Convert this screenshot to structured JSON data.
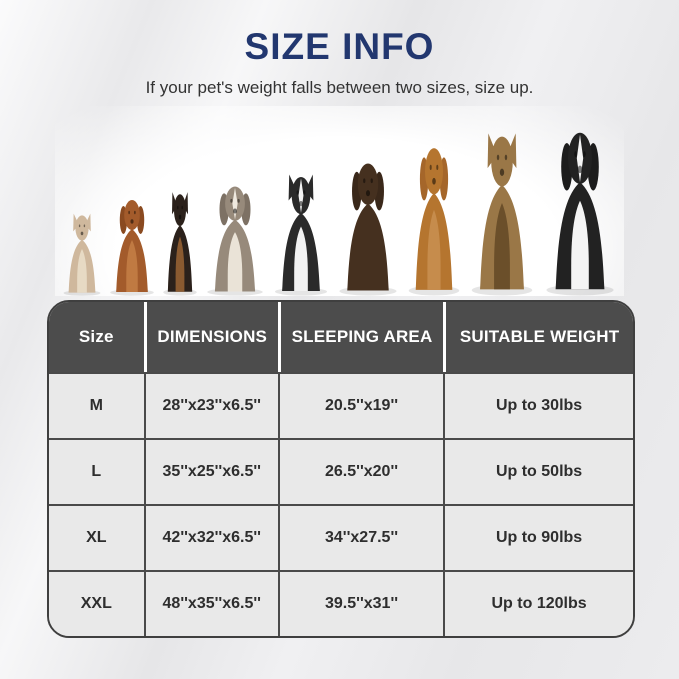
{
  "page": {
    "title": "SIZE INFO",
    "subtitle": "If your pet's weight falls between two sizes, size up."
  },
  "colors": {
    "title_text": "#22376f",
    "subtitle_text": "#333333",
    "table_header_bg": "#4c4c4c",
    "table_header_text": "#ffffff",
    "table_cell_bg": "#e9e9e9",
    "table_border": "#4a4a4a",
    "page_background": "#ececee"
  },
  "dogs": [
    {
      "name": "french-bulldog",
      "ears": "up",
      "body": "#cfb89d",
      "chest": "#e7dac4",
      "w": 44,
      "h": 84
    },
    {
      "name": "cavalier-spaniel",
      "ears": "floppy",
      "ear": "#8a4a20",
      "body": "#a35b2b",
      "chest": "#c07a42",
      "w": 52,
      "h": 100
    },
    {
      "name": "miniature-pinscher",
      "ears": "up",
      "body": "#2b211b",
      "chest": "#8a5a30",
      "w": 40,
      "h": 106
    },
    {
      "name": "english-bulldog",
      "ears": "floppy",
      "ear": "#7d7164",
      "body": "#978a7b",
      "chest": "#eae3d7",
      "blaze": "#efe9df",
      "w": 66,
      "h": 114
    },
    {
      "name": "border-collie",
      "ears": "up",
      "body": "#2a2a2a",
      "chest": "#f2f2f2",
      "blaze": "#f4f4f4",
      "w": 62,
      "h": 124
    },
    {
      "name": "chocolate-labrador",
      "ears": "floppy",
      "ear": "#3a281a",
      "body": "#45301f",
      "w": 68,
      "h": 138
    },
    {
      "name": "vizsla",
      "ears": "floppy",
      "ear": "#a5662a",
      "body": "#b5752f",
      "chest": "#c68c4c",
      "w": 60,
      "h": 154
    },
    {
      "name": "german-shepherd",
      "ears": "up",
      "body": "#9a7747",
      "chest": "#6b4f2a",
      "w": 72,
      "h": 166
    },
    {
      "name": "bernese-mountain-dog",
      "ears": "floppy",
      "ear": "#1c1c1c",
      "body": "#222222",
      "chest": "#f4f4f4",
      "blaze": "#f4f4f4",
      "w": 80,
      "h": 170
    }
  ],
  "table": {
    "headers": [
      "Size",
      "DIMENSIONS",
      "SLEEPING AREA",
      "SUITABLE WEIGHT"
    ],
    "rows": [
      [
        "M",
        "28''x23''x6.5''",
        "20.5''x19''",
        "Up to 30lbs"
      ],
      [
        "L",
        "35''x25''x6.5''",
        "26.5''x20''",
        "Up to 50lbs"
      ],
      [
        "XL",
        "42''x32''x6.5''",
        "34''x27.5''",
        "Up to 90lbs"
      ],
      [
        "XXL",
        "48''x35''x6.5''",
        "39.5''x31''",
        "Up to 120lbs"
      ]
    ]
  }
}
